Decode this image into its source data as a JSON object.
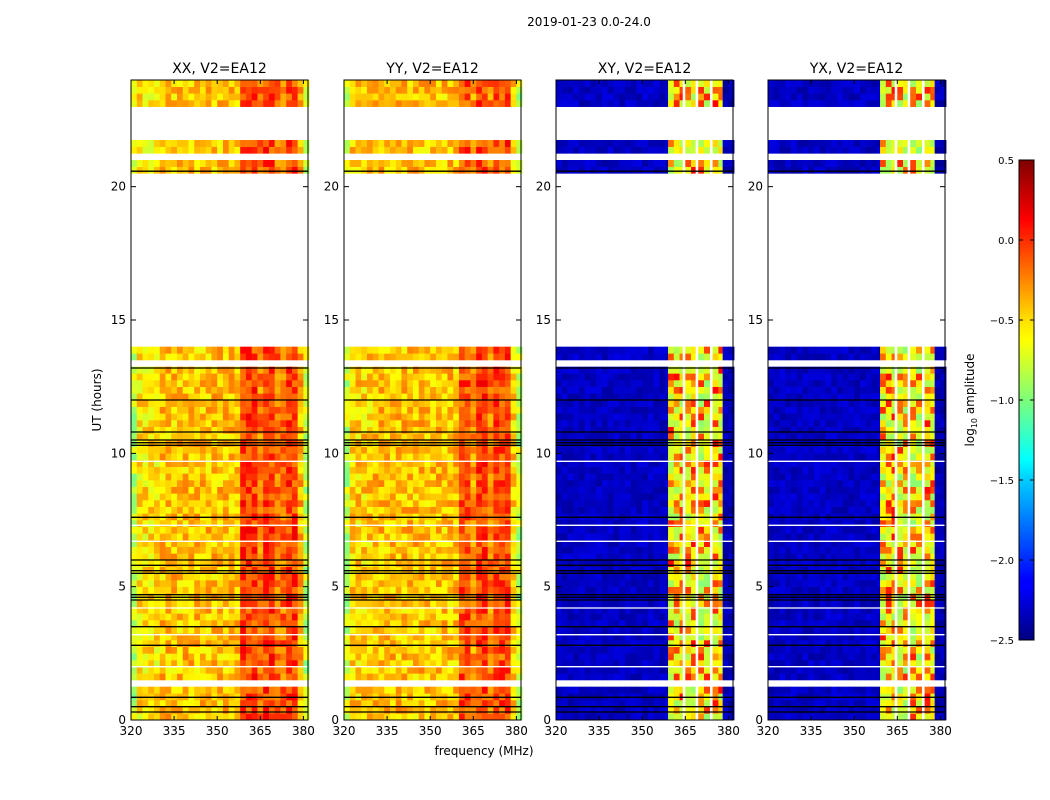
{
  "chart_data": {
    "type": "heatmap",
    "title": "2019-01-23 0.0-24.0",
    "xlabel": "frequency (MHz)",
    "ylabel": "UT (hours)",
    "xlim": [
      320,
      381.6
    ],
    "ylim": [
      0,
      24
    ],
    "xticks": [
      "320",
      "335",
      "350",
      "365",
      "380"
    ],
    "yticks": [
      "0",
      "5",
      "10",
      "15",
      "20"
    ],
    "panels": [
      {
        "title": "XX, V2=EA12",
        "profile": [
          [
            320,
            322,
            -0.8
          ],
          [
            322,
            330,
            -0.55
          ],
          [
            330,
            358,
            -0.45
          ],
          [
            358,
            364,
            -0.05
          ],
          [
            364,
            366,
            -0.25
          ],
          [
            366,
            370,
            -0.05
          ],
          [
            370,
            374,
            -0.2
          ],
          [
            374,
            378,
            -0.05
          ],
          [
            378,
            380,
            -0.4
          ],
          [
            380,
            382,
            -0.8
          ]
        ]
      },
      {
        "title": "YY, V2=EA12",
        "profile": [
          [
            320,
            322,
            -0.8
          ],
          [
            322,
            330,
            -0.5
          ],
          [
            330,
            360,
            -0.45
          ],
          [
            360,
            364,
            -0.1
          ],
          [
            364,
            366,
            -0.3
          ],
          [
            366,
            370,
            -0.05
          ],
          [
            370,
            372,
            -0.25
          ],
          [
            372,
            376,
            -0.1
          ],
          [
            376,
            378,
            -0.05
          ],
          [
            378,
            380,
            -0.5
          ],
          [
            380,
            382,
            -0.8
          ]
        ]
      },
      {
        "title": "XY, V2=EA12",
        "profile": [
          [
            320,
            359,
            -2.3
          ],
          [
            359,
            364,
            -0.7
          ],
          [
            364,
            365,
            null
          ],
          [
            365,
            368.5,
            -0.7
          ],
          [
            368.5,
            369.5,
            null
          ],
          [
            369.5,
            373.5,
            -0.75
          ],
          [
            373.5,
            374.5,
            null
          ],
          [
            374.5,
            378,
            -0.7
          ],
          [
            378,
            382,
            -2.35
          ]
        ]
      },
      {
        "title": "YX, V2=EA12",
        "profile": [
          [
            320,
            359,
            -2.3
          ],
          [
            359,
            364,
            -0.7
          ],
          [
            364,
            365,
            null
          ],
          [
            365,
            368.5,
            -0.75
          ],
          [
            368.5,
            369.5,
            null
          ],
          [
            369.5,
            373.5,
            -0.75
          ],
          [
            373.5,
            374.5,
            null
          ],
          [
            374.5,
            378,
            -0.7
          ],
          [
            378,
            382,
            -2.35
          ]
        ]
      }
    ],
    "flagged_gaps_hours": [
      [
        21.65,
        22.9
      ],
      [
        21.05,
        21.35
      ],
      [
        14.1,
        20.6
      ],
      [
        13.3,
        13.55
      ],
      [
        1.3,
        1.55
      ]
    ],
    "black_flag_lines_hours": [
      20.58,
      13.2,
      12.0,
      10.8,
      10.5,
      10.4,
      10.3,
      7.6,
      6.0,
      5.8,
      5.6,
      5.5,
      4.7,
      4.6,
      4.5,
      3.5,
      2.8,
      0.85,
      0.5,
      0.3
    ],
    "white_flag_lines_hours": [
      9.7,
      7.3,
      6.7,
      4.2,
      3.2,
      2.0
    ],
    "colorbar": {
      "label": "log10 amplitude",
      "label_main": "log",
      "label_sub": "10",
      "label_rest": " amplitude",
      "range": [
        -2.5,
        0.5
      ],
      "colormap": "jet",
      "ticks": [
        "0.5",
        "0.0",
        "−0.5",
        "−1.0",
        "−1.5",
        "−2.0",
        "−2.5"
      ],
      "tick_values": [
        0.5,
        0.0,
        -0.5,
        -1.0,
        -1.5,
        -2.0,
        -2.5
      ]
    }
  }
}
